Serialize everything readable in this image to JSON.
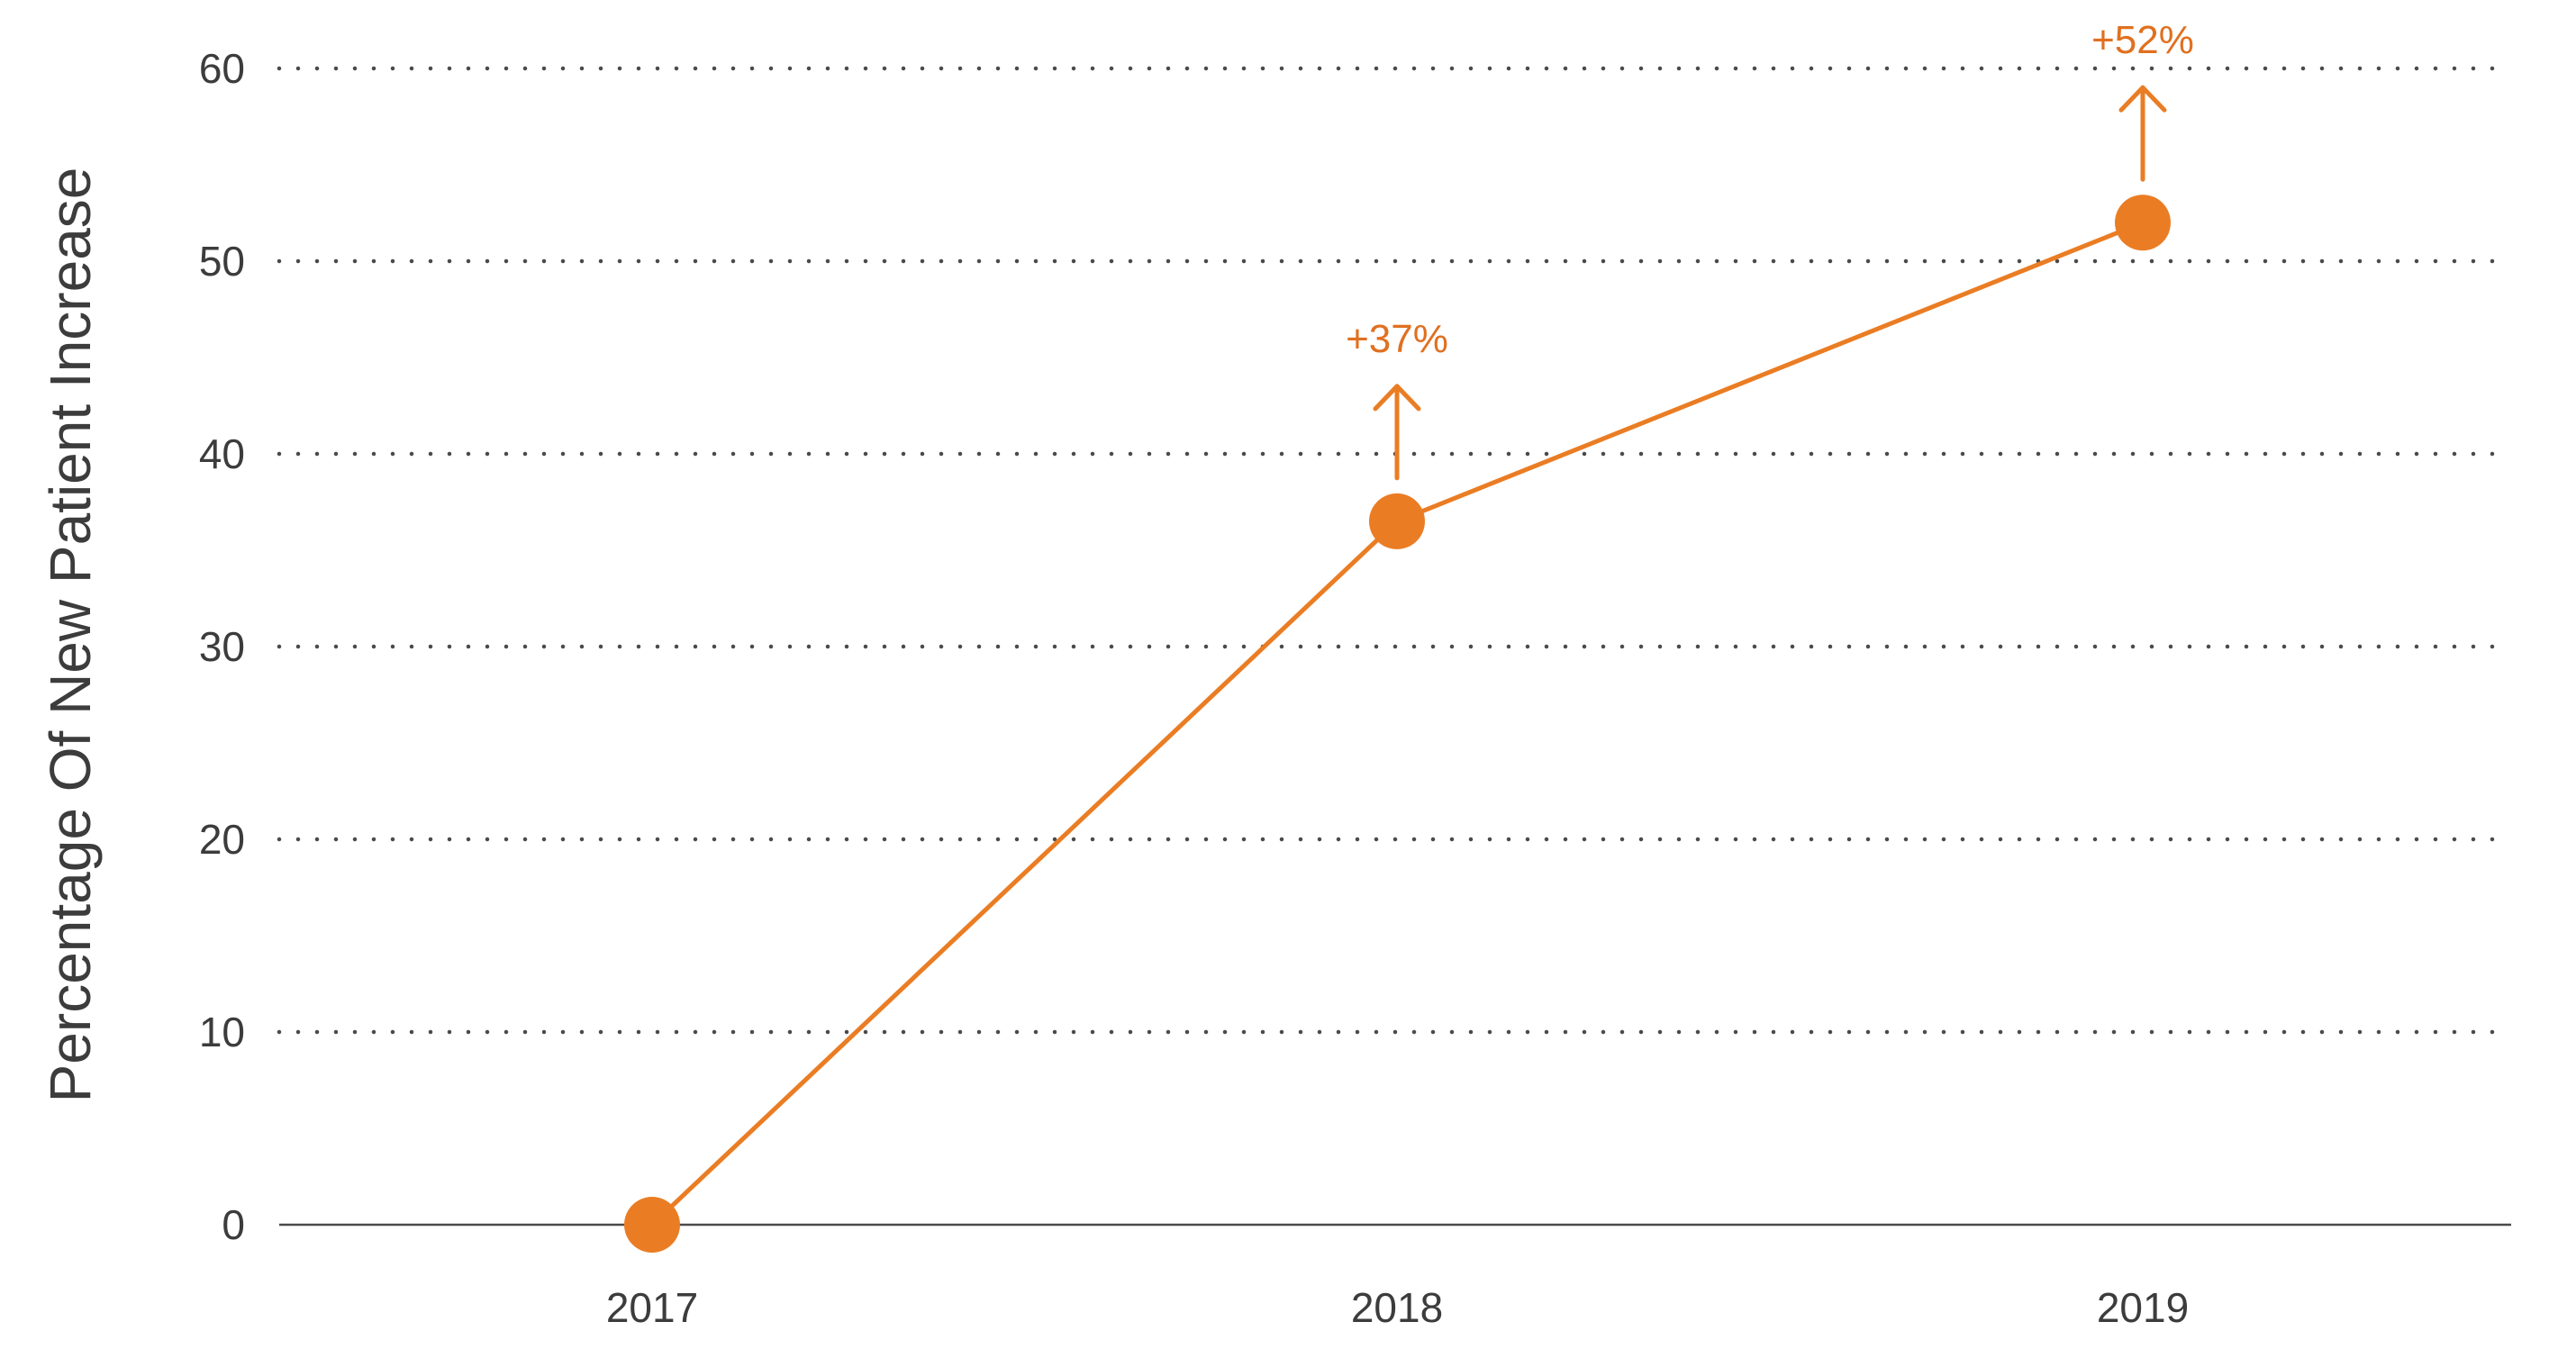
{
  "chart_data": {
    "type": "line",
    "title": "",
    "xlabel": "",
    "ylabel": "Percentage Of New Patient Increase",
    "x": [
      "2017",
      "2018",
      "2019"
    ],
    "series": [
      {
        "values": [
          0,
          36.5,
          52
        ]
      }
    ],
    "ylim": [
      0,
      60
    ],
    "yticks": [
      0,
      10,
      20,
      30,
      40,
      50,
      60
    ],
    "grid": "horizontal dotted",
    "legend": "none",
    "annotations": [
      {
        "x": "2018",
        "text": "+37%",
        "arrow": "up"
      },
      {
        "x": "2019",
        "text": "+52%",
        "arrow": "up"
      }
    ],
    "colors": {
      "series": "#ea7d24",
      "annotation_text": "#e07020",
      "grid": "#4a4a4a",
      "baseline": "#4a4a4a",
      "text": "#3c3c3c"
    }
  }
}
